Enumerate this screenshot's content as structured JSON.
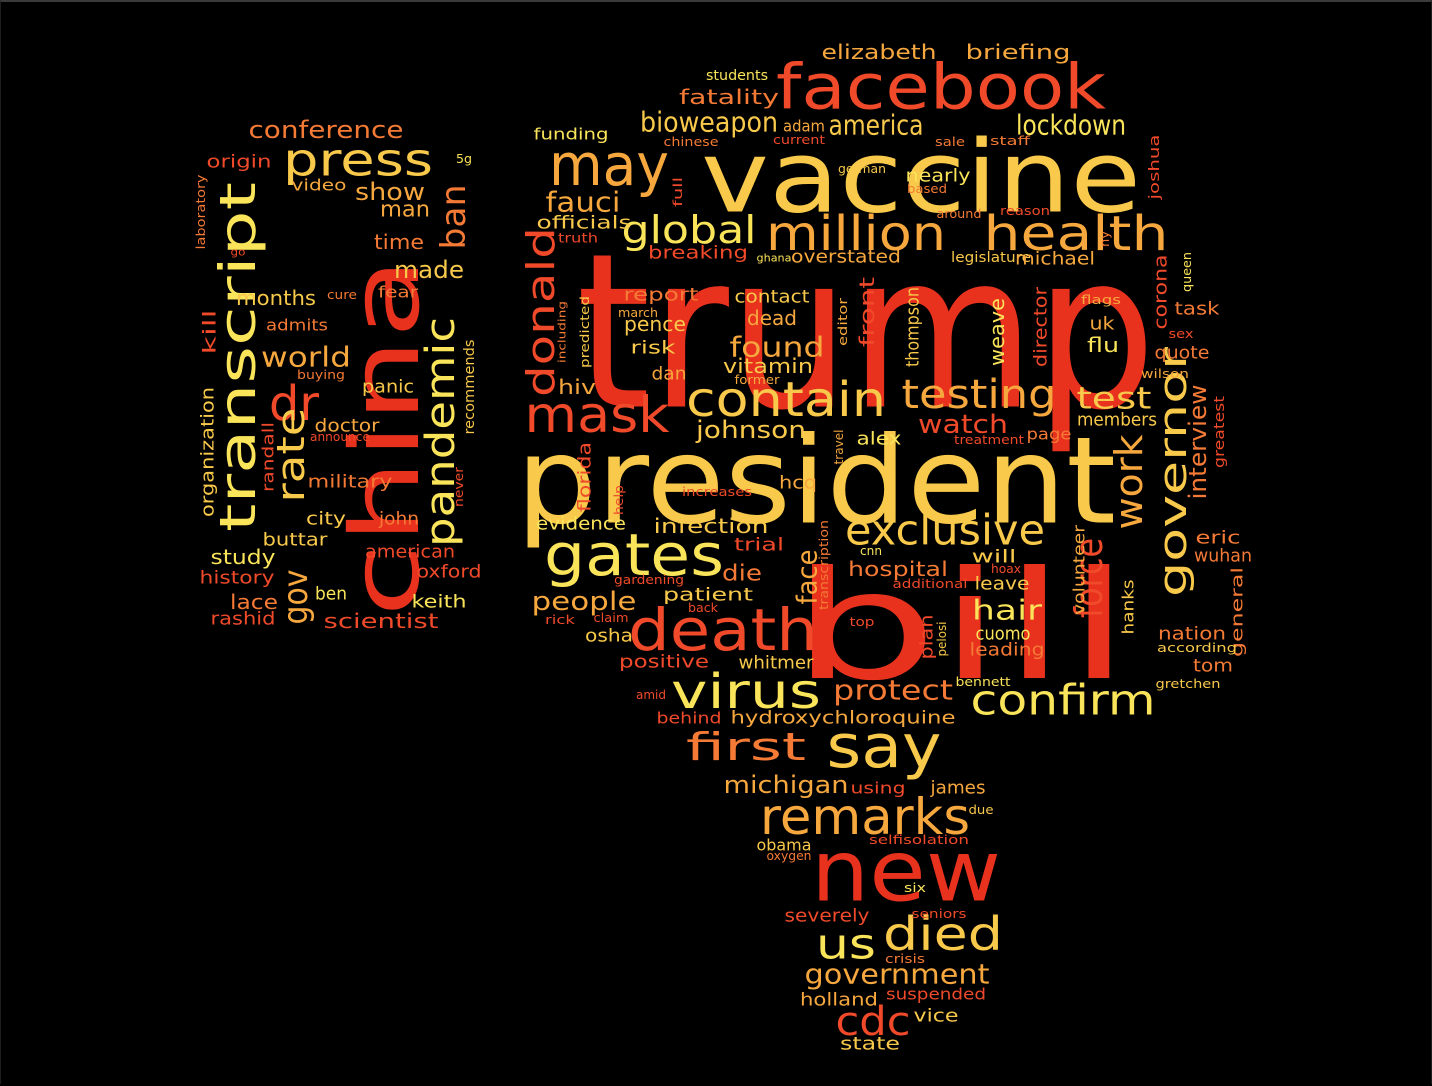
{
  "palette": {
    "background": "#000000",
    "deep_red": "#E8321E",
    "orange_red": "#F04A2A",
    "orange": "#F47A35",
    "amber": "#F6A83E",
    "gold": "#F8C94A",
    "yellow": "#FAE45A"
  },
  "words": [
    {
      "text": "trump",
      "color": "#E8321E"
    },
    {
      "text": "bill",
      "color": "#E8321E"
    },
    {
      "text": "president",
      "color": "#F8C94A"
    },
    {
      "text": "vaccine",
      "color": "#F8C94A"
    },
    {
      "text": "china",
      "color": "#E8321E"
    },
    {
      "text": "new",
      "color": "#E8321E"
    },
    {
      "text": "facebook",
      "color": "#F04A2A"
    },
    {
      "text": "transcript",
      "color": "#FAE45A"
    },
    {
      "text": "death",
      "color": "#F04A2A"
    },
    {
      "text": "million",
      "color": "#F6A83E"
    },
    {
      "text": "health",
      "color": "#F6A83E"
    },
    {
      "text": "may",
      "color": "#F6A83E"
    },
    {
      "text": "gates",
      "color": "#FAE45A"
    },
    {
      "text": "contain",
      "color": "#F8C94A"
    },
    {
      "text": "mask",
      "color": "#F04A2A"
    },
    {
      "text": "say",
      "color": "#F8C94A"
    },
    {
      "text": "virus",
      "color": "#FAE45A"
    },
    {
      "text": "remarks",
      "color": "#F6A83E"
    },
    {
      "text": "exclusive",
      "color": "#F8C94A"
    },
    {
      "text": "press",
      "color": "#F8C94A"
    },
    {
      "text": "pandemic",
      "color": "#FAE45A"
    },
    {
      "text": "governor",
      "color": "#F8C94A"
    },
    {
      "text": "confirm",
      "color": "#FAE45A"
    },
    {
      "text": "died",
      "color": "#F8C94A"
    },
    {
      "text": "donald",
      "color": "#F04A2A"
    },
    {
      "text": "testing",
      "color": "#F6A83E"
    },
    {
      "text": "work",
      "color": "#F6A83E"
    },
    {
      "text": "dr",
      "color": "#F04A2A"
    },
    {
      "text": "rate",
      "color": "#F8C94A"
    },
    {
      "text": "force",
      "color": "#F04A2A"
    },
    {
      "text": "global",
      "color": "#FAE45A"
    },
    {
      "text": "first",
      "color": "#F47A35"
    },
    {
      "text": "cdc",
      "color": "#F04A2A"
    },
    {
      "text": "us",
      "color": "#FAE45A"
    },
    {
      "text": "government",
      "color": "#F6A83E"
    },
    {
      "text": "gov",
      "color": "#F6A83E"
    },
    {
      "text": "ban",
      "color": "#F47A35"
    },
    {
      "text": "bioweapon",
      "color": "#F8C94A"
    },
    {
      "text": "america",
      "color": "#F8C94A"
    },
    {
      "text": "lockdown",
      "color": "#FAE45A"
    },
    {
      "text": "fauci",
      "color": "#F6A83E"
    },
    {
      "text": "test",
      "color": "#F8C94A"
    },
    {
      "text": "interview",
      "color": "#F47A35"
    },
    {
      "text": "michigan",
      "color": "#F6A83E"
    },
    {
      "text": "protect",
      "color": "#F47A35"
    },
    {
      "text": "people",
      "color": "#F6A83E"
    },
    {
      "text": "found",
      "color": "#F6A83E"
    },
    {
      "text": "watch",
      "color": "#F04A2A"
    },
    {
      "text": "johnson",
      "color": "#F8C94A"
    },
    {
      "text": "hair",
      "color": "#FAE45A"
    },
    {
      "text": "face",
      "color": "#F6A83E"
    },
    {
      "text": "world",
      "color": "#F6A83E"
    },
    {
      "text": "show",
      "color": "#F6A83E"
    },
    {
      "text": "conference",
      "color": "#F47A35"
    },
    {
      "text": "elizabeth",
      "color": "#F6A83E"
    },
    {
      "text": "briefing",
      "color": "#F6A83E"
    },
    {
      "text": "made",
      "color": "#F8C94A"
    },
    {
      "text": "man",
      "color": "#F6A83E"
    },
    {
      "text": "hospital",
      "color": "#F47A35"
    },
    {
      "text": "infection",
      "color": "#F8C94A"
    },
    {
      "text": "hiv",
      "color": "#F6A83E"
    },
    {
      "text": "die",
      "color": "#F47A35"
    },
    {
      "text": "fatality",
      "color": "#F47A35"
    },
    {
      "text": "breaking",
      "color": "#F04A2A"
    },
    {
      "text": "overstated",
      "color": "#F6A83E"
    },
    {
      "text": "report",
      "color": "#F47A35"
    },
    {
      "text": "contact",
      "color": "#F8C94A"
    },
    {
      "text": "dead",
      "color": "#F6A83E"
    },
    {
      "text": "pence",
      "color": "#F8C94A"
    },
    {
      "text": "vitamin",
      "color": "#F8C94A"
    },
    {
      "text": "months",
      "color": "#F8C94A"
    },
    {
      "text": "time",
      "color": "#F47A35"
    },
    {
      "text": "study",
      "color": "#FAE45A"
    },
    {
      "text": "history",
      "color": "#F04A2A"
    },
    {
      "text": "lace",
      "color": "#F47A35"
    },
    {
      "text": "rashid",
      "color": "#F04A2A"
    },
    {
      "text": "buttar",
      "color": "#F8C94A"
    },
    {
      "text": "city",
      "color": "#F8C94A"
    },
    {
      "text": "john",
      "color": "#F47A35"
    },
    {
      "text": "ben",
      "color": "#FAE45A"
    },
    {
      "text": "scientist",
      "color": "#F04A2A"
    },
    {
      "text": "keith",
      "color": "#FAE45A"
    },
    {
      "text": "oxford",
      "color": "#F04A2A"
    },
    {
      "text": "american",
      "color": "#F04A2A"
    },
    {
      "text": "military",
      "color": "#F47A35"
    },
    {
      "text": "doctor",
      "color": "#F6A83E"
    },
    {
      "text": "panic",
      "color": "#F8C94A"
    },
    {
      "text": "admits",
      "color": "#F47A35"
    },
    {
      "text": "fear",
      "color": "#F47A35"
    },
    {
      "text": "origin",
      "color": "#F04A2A"
    },
    {
      "text": "video",
      "color": "#F6A83E"
    },
    {
      "text": "cure",
      "color": "#F47A35"
    },
    {
      "text": "5g",
      "color": "#FAE45A"
    },
    {
      "text": "kill",
      "color": "#F04A2A"
    },
    {
      "text": "organization",
      "color": "#F8C94A"
    },
    {
      "text": "randall",
      "color": "#F04A2A"
    },
    {
      "text": "laboratory",
      "color": "#F47A35"
    },
    {
      "text": "go",
      "color": "#F04A2A"
    },
    {
      "text": "buying",
      "color": "#F47A35"
    },
    {
      "text": "announce",
      "color": "#F04A2A"
    },
    {
      "text": "recommends",
      "color": "#F8C94A"
    },
    {
      "text": "never",
      "color": "#F04A2A"
    },
    {
      "text": "students",
      "color": "#FAE45A"
    },
    {
      "text": "funding",
      "color": "#FAE45A"
    },
    {
      "text": "adam",
      "color": "#F6A83E"
    },
    {
      "text": "chinese",
      "color": "#F47A35"
    },
    {
      "text": "current",
      "color": "#F04A2A"
    },
    {
      "text": "sale",
      "color": "#F47A35"
    },
    {
      "text": "staff",
      "color": "#F47A35"
    },
    {
      "text": "joshua",
      "color": "#F04A2A"
    },
    {
      "text": "german",
      "color": "#F8C94A"
    },
    {
      "text": "nearly",
      "color": "#FAE45A"
    },
    {
      "text": "based",
      "color": "#F47A35"
    },
    {
      "text": "around",
      "color": "#F47A35"
    },
    {
      "text": "reason",
      "color": "#F04A2A"
    },
    {
      "text": "officials",
      "color": "#F8C94A"
    },
    {
      "text": "truth",
      "color": "#F04A2A"
    },
    {
      "text": "full",
      "color": "#F04A2A"
    },
    {
      "text": "ghana",
      "color": "#FAE45A"
    },
    {
      "text": "legislature",
      "color": "#F8C94A"
    },
    {
      "text": "michael",
      "color": "#F6A83E"
    },
    {
      "text": "ny",
      "color": "#F47A35"
    },
    {
      "text": "queen",
      "color": "#FAE45A"
    },
    {
      "text": "corona",
      "color": "#F04A2A"
    },
    {
      "text": "task",
      "color": "#F47A35"
    },
    {
      "text": "flags",
      "color": "#F6A83E"
    },
    {
      "text": "uk",
      "color": "#F6A83E"
    },
    {
      "text": "flu",
      "color": "#FAE45A"
    },
    {
      "text": "sex",
      "color": "#F04A2A"
    },
    {
      "text": "quote",
      "color": "#F47A35"
    },
    {
      "text": "wilson",
      "color": "#F6A83E"
    },
    {
      "text": "members",
      "color": "#F8C94A"
    },
    {
      "text": "greatest",
      "color": "#F04A2A"
    },
    {
      "text": "treatment",
      "color": "#F04A2A"
    },
    {
      "text": "page",
      "color": "#F47A35"
    },
    {
      "text": "alex",
      "color": "#FAE45A"
    },
    {
      "text": "thompson",
      "color": "#F8C94A"
    },
    {
      "text": "front",
      "color": "#F04A2A"
    },
    {
      "text": "editor",
      "color": "#F6A83E"
    },
    {
      "text": "weave",
      "color": "#FAE45A"
    },
    {
      "text": "director",
      "color": "#F04A2A"
    },
    {
      "text": "including",
      "color": "#F47A35"
    },
    {
      "text": "predicted",
      "color": "#F8C94A"
    },
    {
      "text": "march",
      "color": "#F6A83E"
    },
    {
      "text": "risk",
      "color": "#F8C94A"
    },
    {
      "text": "dan",
      "color": "#F6A83E"
    },
    {
      "text": "former",
      "color": "#F6A83E"
    },
    {
      "text": "travel",
      "color": "#F6A83E"
    },
    {
      "text": "florida",
      "color": "#F04A2A"
    },
    {
      "text": "help",
      "color": "#F04A2A"
    },
    {
      "text": "increases",
      "color": "#F04A2A"
    },
    {
      "text": "hcq",
      "color": "#F6A83E"
    },
    {
      "text": "evidence",
      "color": "#FAE45A"
    },
    {
      "text": "transcription",
      "color": "#F47A35"
    },
    {
      "text": "trial",
      "color": "#F04A2A"
    },
    {
      "text": "cnn",
      "color": "#FAE45A"
    },
    {
      "text": "will",
      "color": "#F8C94A"
    },
    {
      "text": "hoax",
      "color": "#F04A2A"
    },
    {
      "text": "leave",
      "color": "#F8C94A"
    },
    {
      "text": "additional",
      "color": "#F04A2A"
    },
    {
      "text": "volunteer",
      "color": "#F6A83E"
    },
    {
      "text": "eric",
      "color": "#F47A35"
    },
    {
      "text": "wuhan",
      "color": "#F47A35"
    },
    {
      "text": "general",
      "color": "#F47A35"
    },
    {
      "text": "gardening",
      "color": "#F04A2A"
    },
    {
      "text": "patient",
      "color": "#F8C94A"
    },
    {
      "text": "back",
      "color": "#F04A2A"
    },
    {
      "text": "claim",
      "color": "#F04A2A"
    },
    {
      "text": "rick",
      "color": "#F04A2A"
    },
    {
      "text": "osha",
      "color": "#F8C94A"
    },
    {
      "text": "top",
      "color": "#F04A2A"
    },
    {
      "text": "plan",
      "color": "#F04A2A"
    },
    {
      "text": "pelosi",
      "color": "#F8C94A"
    },
    {
      "text": "cuomo",
      "color": "#FAE45A"
    },
    {
      "text": "leading",
      "color": "#F47A35"
    },
    {
      "text": "hanks",
      "color": "#F8C94A"
    },
    {
      "text": "nation",
      "color": "#F47A35"
    },
    {
      "text": "according",
      "color": "#F8C94A"
    },
    {
      "text": "tom",
      "color": "#F47A35"
    },
    {
      "text": "positive",
      "color": "#F04A2A"
    },
    {
      "text": "whitmer",
      "color": "#F8C94A"
    },
    {
      "text": "bennett",
      "color": "#FAE45A"
    },
    {
      "text": "gretchen",
      "color": "#F8C94A"
    },
    {
      "text": "amid",
      "color": "#F04A2A"
    },
    {
      "text": "behind",
      "color": "#F04A2A"
    },
    {
      "text": "hydroxychloroquine",
      "color": "#F6A83E"
    },
    {
      "text": "using",
      "color": "#F04A2A"
    },
    {
      "text": "james",
      "color": "#F6A83E"
    },
    {
      "text": "due",
      "color": "#F8C94A"
    },
    {
      "text": "selfisolation",
      "color": "#F04A2A"
    },
    {
      "text": "obama",
      "color": "#F8C94A"
    },
    {
      "text": "oxygen",
      "color": "#F47A35"
    },
    {
      "text": "six",
      "color": "#FAE45A"
    },
    {
      "text": "severely",
      "color": "#F04A2A"
    },
    {
      "text": "seniors",
      "color": "#F04A2A"
    },
    {
      "text": "crisis",
      "color": "#F47A35"
    },
    {
      "text": "holland",
      "color": "#F6A83E"
    },
    {
      "text": "suspended",
      "color": "#F04A2A"
    },
    {
      "text": "vice",
      "color": "#F8C94A"
    },
    {
      "text": "state",
      "color": "#F8C94A"
    }
  ]
}
